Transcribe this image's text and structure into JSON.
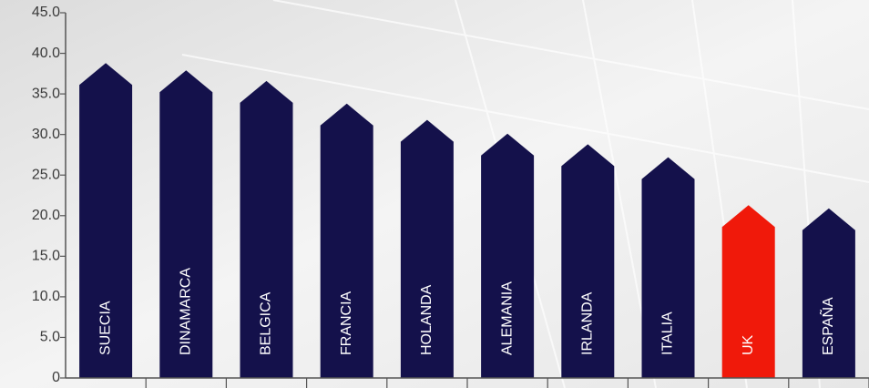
{
  "chart_data": {
    "type": "bar",
    "categories": [
      "SUECIA",
      "DINAMARCA",
      "BELGICA",
      "FRANCIA",
      "HOLANDA",
      "ALEMANIA",
      "IRLANDA",
      "ITALIA",
      "UK",
      "ESPAÑA"
    ],
    "values": [
      38.8,
      37.9,
      36.6,
      33.8,
      31.8,
      30.1,
      28.8,
      27.2,
      21.3,
      20.9
    ],
    "colors": [
      "#14114b",
      "#14114b",
      "#14114b",
      "#14114b",
      "#14114b",
      "#14114b",
      "#14114b",
      "#14114b",
      "#f0190a",
      "#14114b"
    ],
    "ylim": [
      0,
      45
    ],
    "yticks": [
      0,
      {
        "value": 5,
        "label": "5.0"
      },
      {
        "value": 10,
        "label": "10.0"
      },
      {
        "value": 15,
        "label": "15.0"
      },
      {
        "value": 20,
        "label": "20.0"
      },
      {
        "value": 25,
        "label": "25.0"
      },
      {
        "value": 30,
        "label": "30.0"
      },
      {
        "value": 35,
        "label": "35.0"
      },
      {
        "value": 40,
        "label": "40.0"
      },
      {
        "value": 45,
        "label": "45.0"
      }
    ]
  }
}
